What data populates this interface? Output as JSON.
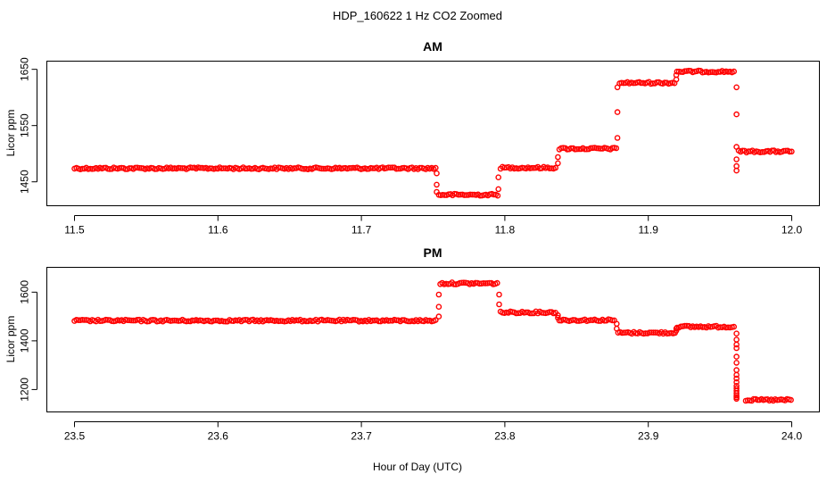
{
  "figure": {
    "title": "HDP_160622  1 Hz CO2 Zoomed",
    "xlabel": "Hour of Day (UTC)",
    "point_color": "#ff0000"
  },
  "chart_data": [
    {
      "type": "scatter",
      "title": "AM",
      "ylabel": "Licor ppm",
      "xlim": [
        11.5,
        12.0
      ],
      "ylim": [
        1417,
        1655
      ],
      "xticks": [
        11.5,
        11.6,
        11.7,
        11.8,
        11.9,
        12.0
      ],
      "xtick_labels": [
        "11.5",
        "11.6",
        "11.7",
        "11.8",
        "11.9",
        "12.0"
      ],
      "yticks": [
        1450,
        1550,
        1650
      ],
      "ytick_labels": [
        "1450",
        "1550",
        "1650"
      ],
      "segments": [
        {
          "x_start": 11.5,
          "x_end": 11.752,
          "y": 1474
        },
        {
          "x_start": 11.754,
          "x_end": 11.796,
          "y": 1427
        },
        {
          "x_start": 11.797,
          "x_end": 11.836,
          "y": 1475
        },
        {
          "x_start": 11.838,
          "x_end": 11.878,
          "y": 1509
        },
        {
          "x_start": 11.88,
          "x_end": 11.919,
          "y": 1626
        },
        {
          "x_start": 11.92,
          "x_end": 11.96,
          "y": 1646
        },
        {
          "x_start": 11.963,
          "x_end": 12.0,
          "y": 1504
        }
      ],
      "transitions": [
        {
          "x": 11.7525,
          "y": [
            1465,
            1445,
            1432
          ]
        },
        {
          "x": 11.7955,
          "y": [
            1437,
            1458
          ]
        },
        {
          "x": 11.837,
          "y": [
            1483,
            1494
          ]
        },
        {
          "x": 11.8785,
          "y": [
            1528,
            1574,
            1618
          ]
        },
        {
          "x": 11.9195,
          "y": [
            1632,
            1640
          ]
        },
        {
          "x": 11.9615,
          "y": [
            1618,
            1570,
            1512,
            1490,
            1478,
            1470
          ]
        }
      ]
    },
    {
      "type": "scatter",
      "title": "PM",
      "ylabel": "Licor ppm",
      "xlim": [
        23.5,
        24.0
      ],
      "ylim": [
        1130,
        1680
      ],
      "xticks": [
        23.5,
        23.6,
        23.7,
        23.8,
        23.9,
        24.0
      ],
      "xtick_labels": [
        "23.5",
        "23.6",
        "23.7",
        "23.8",
        "23.9",
        "24.0"
      ],
      "yticks": [
        1200,
        1400,
        1600
      ],
      "ytick_labels": [
        "1200",
        "1400",
        "1600"
      ],
      "segments": [
        {
          "x_start": 23.5,
          "x_end": 23.753,
          "y": 1483
        },
        {
          "x_start": 23.755,
          "x_end": 23.795,
          "y": 1636
        },
        {
          "x_start": 23.797,
          "x_end": 23.836,
          "y": 1517
        },
        {
          "x_start": 23.838,
          "x_end": 23.877,
          "y": 1485
        },
        {
          "x_start": 23.879,
          "x_end": 23.919,
          "y": 1433
        },
        {
          "x_start": 23.92,
          "x_end": 23.96,
          "y": 1458
        },
        {
          "x_start": 23.968,
          "x_end": 24.0,
          "y": 1157
        }
      ],
      "transitions": [
        {
          "x": 23.754,
          "y": [
            1500,
            1540,
            1590
          ]
        },
        {
          "x": 23.796,
          "y": [
            1590,
            1550
          ]
        },
        {
          "x": 23.837,
          "y": [
            1505,
            1495
          ]
        },
        {
          "x": 23.878,
          "y": [
            1470,
            1450
          ]
        },
        {
          "x": 23.9195,
          "y": [
            1442,
            1450
          ]
        },
        {
          "x": 23.9615,
          "y": [
            1430,
            1405,
            1385,
            1370,
            1335,
            1310,
            1280,
            1260,
            1245,
            1230,
            1215,
            1205,
            1195,
            1185,
            1175,
            1168,
            1162
          ]
        }
      ]
    }
  ]
}
